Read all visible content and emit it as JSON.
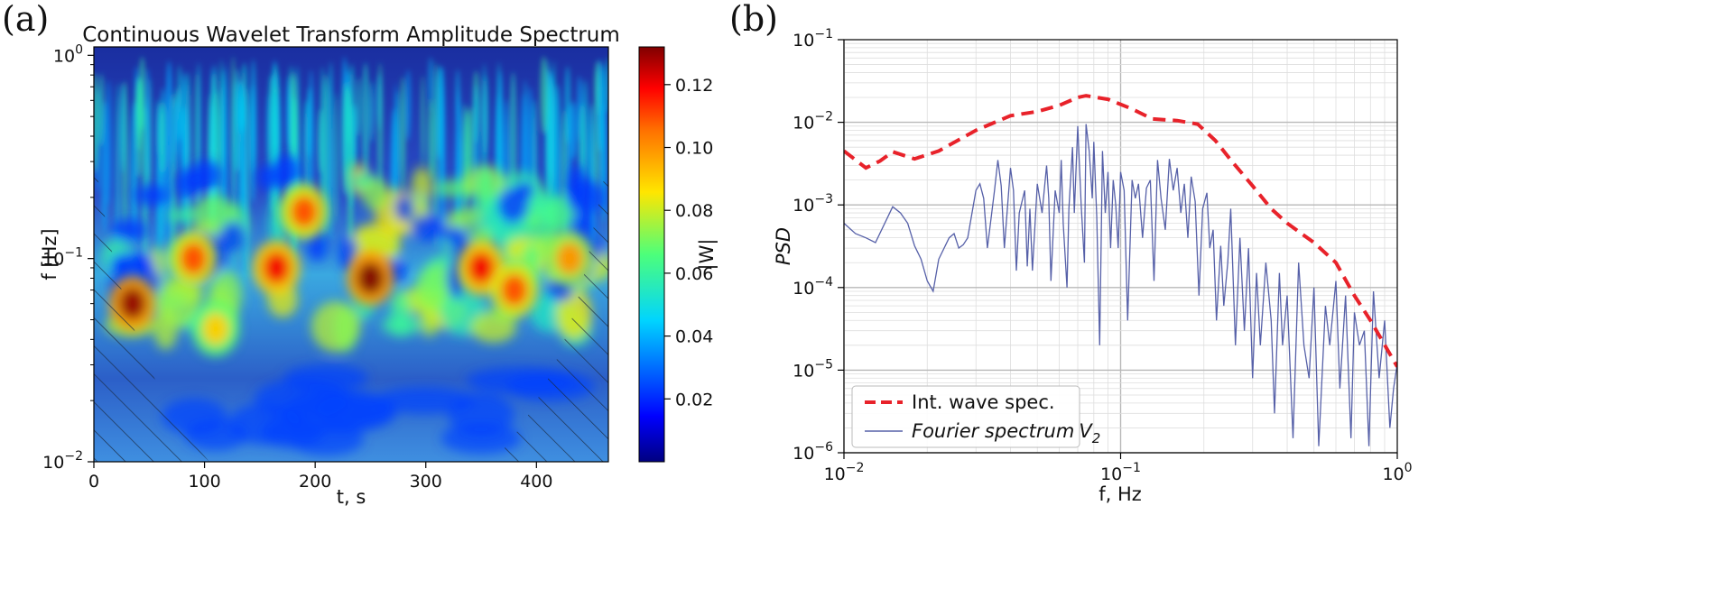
{
  "chart_data": [
    {
      "type": "heatmap",
      "panel_label": "(a)",
      "title": "Continuous Wavelet Transform Amplitude Spectrum",
      "xlabel": "t, s",
      "ylabel": "f [Hz]",
      "xlim": [
        0,
        465
      ],
      "ylim": [
        0.01,
        1.1
      ],
      "yscale": "log",
      "x_ticks": [
        0,
        100,
        200,
        300,
        400
      ],
      "x_tick_labels": [
        "0",
        "100",
        "200",
        "300",
        "400"
      ],
      "y_ticks": [
        0.01,
        0.1,
        1
      ],
      "y_tick_labels": [
        "10",
        "10",
        "10"
      ],
      "y_tick_exps": [
        "−2",
        "−1",
        "0"
      ],
      "colorbar": {
        "label": "|W|",
        "range": [
          0,
          0.132
        ],
        "ticks": [
          0.02,
          0.04,
          0.06,
          0.08,
          0.1,
          0.12
        ],
        "tick_labels": [
          "0.02",
          "0.04",
          "0.06",
          "0.08",
          "0.10",
          "0.12"
        ],
        "colormap": "jet"
      },
      "hotspots": [
        {
          "t": 35,
          "f": 0.06,
          "amp": 0.13
        },
        {
          "t": 90,
          "f": 0.1,
          "amp": 0.11
        },
        {
          "t": 165,
          "f": 0.09,
          "amp": 0.12
        },
        {
          "t": 190,
          "f": 0.17,
          "amp": 0.11
        },
        {
          "t": 250,
          "f": 0.08,
          "amp": 0.132
        },
        {
          "t": 350,
          "f": 0.09,
          "amp": 0.12
        },
        {
          "t": 110,
          "f": 0.045,
          "amp": 0.09
        },
        {
          "t": 380,
          "f": 0.07,
          "amp": 0.11
        },
        {
          "t": 430,
          "f": 0.1,
          "amp": 0.1
        }
      ],
      "cone_of_influence": "hatched"
    },
    {
      "type": "line",
      "panel_label": "(b)",
      "xlabel": "f, Hz",
      "ylabel": "PSD",
      "xscale": "log",
      "yscale": "log",
      "xlim": [
        0.01,
        1
      ],
      "ylim": [
        1e-06,
        0.1
      ],
      "grid": true,
      "x_ticks": [
        0.01,
        0.1,
        1
      ],
      "x_tick_labels": [
        "10",
        "10",
        "10"
      ],
      "x_tick_exps": [
        "−2",
        "−1",
        "0"
      ],
      "y_ticks": [
        1e-06,
        1e-05,
        0.0001,
        0.001,
        0.01,
        0.1
      ],
      "y_tick_labels": [
        "10",
        "10",
        "10",
        "10",
        "10",
        "10"
      ],
      "y_tick_exps": [
        "−6",
        "−5",
        "−4",
        "−3",
        "−2",
        "−1"
      ],
      "legend_position": "lower-left",
      "series": [
        {
          "name": "Int. wave spec.",
          "color": "#e8222a",
          "style": "dashed",
          "x": [
            0.01,
            0.012,
            0.0135,
            0.015,
            0.018,
            0.022,
            0.03,
            0.04,
            0.05,
            0.06,
            0.07,
            0.075,
            0.09,
            0.11,
            0.13,
            0.16,
            0.19,
            0.22,
            0.25,
            0.3,
            0.35,
            0.4,
            0.5,
            0.6,
            0.7,
            0.8,
            1.0
          ],
          "y": [
            0.0045,
            0.0028,
            0.0034,
            0.0044,
            0.0036,
            0.0045,
            0.008,
            0.012,
            0.0135,
            0.016,
            0.02,
            0.021,
            0.019,
            0.0145,
            0.011,
            0.0105,
            0.0095,
            0.006,
            0.0035,
            0.0017,
            0.0009,
            0.0006,
            0.00035,
            0.0002,
            8e-05,
            4e-05,
            1.1e-05
          ]
        },
        {
          "name": "Fourier spectrum",
          "legend_subscript": "2",
          "color": "#5660a8",
          "style": "solid",
          "x": [
            0.01,
            0.011,
            0.012,
            0.013,
            0.015,
            0.016,
            0.017,
            0.018,
            0.019,
            0.02,
            0.021,
            0.022,
            0.024,
            0.025,
            0.026,
            0.027,
            0.028,
            0.03,
            0.031,
            0.032,
            0.033,
            0.035,
            0.036,
            0.037,
            0.038,
            0.04,
            0.041,
            0.042,
            0.043,
            0.045,
            0.046,
            0.047,
            0.048,
            0.05,
            0.052,
            0.054,
            0.055,
            0.056,
            0.058,
            0.06,
            0.061,
            0.062,
            0.064,
            0.065,
            0.067,
            0.068,
            0.07,
            0.072,
            0.074,
            0.075,
            0.077,
            0.079,
            0.08,
            0.082,
            0.084,
            0.086,
            0.088,
            0.09,
            0.092,
            0.094,
            0.096,
            0.098,
            0.1,
            0.103,
            0.106,
            0.11,
            0.113,
            0.116,
            0.12,
            0.124,
            0.128,
            0.132,
            0.136,
            0.14,
            0.145,
            0.15,
            0.155,
            0.16,
            0.165,
            0.17,
            0.175,
            0.18,
            0.186,
            0.192,
            0.198,
            0.205,
            0.21,
            0.216,
            0.222,
            0.23,
            0.236,
            0.244,
            0.25,
            0.26,
            0.27,
            0.28,
            0.29,
            0.3,
            0.31,
            0.32,
            0.335,
            0.35,
            0.36,
            0.375,
            0.385,
            0.4,
            0.42,
            0.44,
            0.46,
            0.48,
            0.5,
            0.52,
            0.55,
            0.57,
            0.6,
            0.62,
            0.65,
            0.68,
            0.7,
            0.73,
            0.76,
            0.79,
            0.82,
            0.86,
            0.9,
            0.94,
            0.97,
            1.0
          ],
          "y": [
            0.0006,
            0.00045,
            0.0004,
            0.00035,
            0.00095,
            0.0008,
            0.0006,
            0.00032,
            0.00022,
            0.00012,
            9e-05,
            0.00022,
            0.0004,
            0.00045,
            0.0003,
            0.00033,
            0.0004,
            0.0015,
            0.0018,
            0.0012,
            0.0003,
            0.0015,
            0.0035,
            0.0017,
            0.0003,
            0.0028,
            0.0015,
            0.00016,
            0.0008,
            0.0015,
            0.00018,
            0.0009,
            0.00016,
            0.0018,
            0.0008,
            0.003,
            0.0012,
            0.00012,
            0.0015,
            0.0008,
            0.0035,
            0.0006,
            0.0001,
            0.0009,
            0.005,
            0.0008,
            0.009,
            0.001,
            0.0002,
            0.0095,
            0.0045,
            0.0012,
            0.0058,
            0.0007,
            2e-05,
            0.0045,
            0.0008,
            0.0025,
            0.0003,
            0.002,
            0.001,
            0.0003,
            0.0025,
            0.0015,
            4e-05,
            0.002,
            0.0012,
            0.0018,
            0.0004,
            0.0016,
            0.002,
            0.00012,
            0.0035,
            0.0012,
            0.0005,
            0.0036,
            0.0015,
            0.0028,
            0.0008,
            0.0018,
            0.0004,
            0.0022,
            0.0011,
            8e-05,
            0.0009,
            0.0014,
            0.0003,
            0.0005,
            4e-05,
            0.00032,
            6e-05,
            0.0002,
            0.0009,
            2e-05,
            0.0004,
            3e-05,
            0.0003,
            8e-06,
            0.00015,
            2e-05,
            0.0002,
            4e-05,
            3e-06,
            0.00015,
            2e-05,
            8e-05,
            1.5e-06,
            0.0002,
            2e-05,
            8e-06,
            0.0001,
            1.2e-06,
            6e-05,
            2e-05,
            0.00012,
            6e-06,
            8e-05,
            1.5e-06,
            5e-05,
            2e-05,
            3e-05,
            1.2e-06,
            9e-05,
            8e-06,
            4e-05,
            2e-06,
            6e-06,
            1.2e-05
          ]
        }
      ]
    }
  ]
}
